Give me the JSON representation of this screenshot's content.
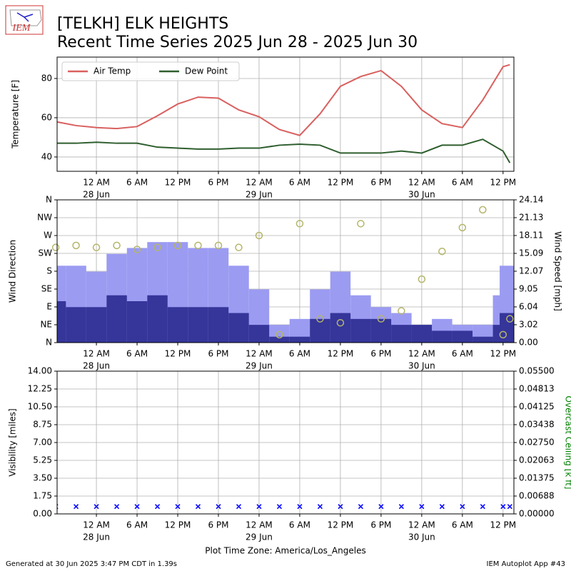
{
  "header": {
    "title": "[TELKH] ELK HEIGHTS",
    "subtitle": "Recent Time Series 2025 Jun 28 - 2025 Jun 30",
    "logo_text": "IEM"
  },
  "footer": {
    "left": "Generated at 30 Jun 2025 3:47 PM CDT in 1.39s",
    "right": "IEM Autoplot App #43"
  },
  "chart_data": [
    {
      "type": "line",
      "ylabel": "Temperature [F]",
      "legend": "upper left",
      "grid": true,
      "xlim": [
        -5.8,
        61.6
      ],
      "ylim": [
        32.7,
        90.9
      ],
      "yticks": [
        40,
        60,
        80
      ],
      "xticks": [
        {
          "value": 0,
          "label": "12 AM",
          "date": "28 Jun"
        },
        {
          "value": 6,
          "label": "6 AM"
        },
        {
          "value": 12,
          "label": "12 PM"
        },
        {
          "value": 18,
          "label": "6 PM"
        },
        {
          "value": 24,
          "label": "12 AM",
          "date": "29 Jun"
        },
        {
          "value": 30,
          "label": "6 AM"
        },
        {
          "value": 36,
          "label": "12 PM"
        },
        {
          "value": 42,
          "label": "6 PM"
        },
        {
          "value": 48,
          "label": "12 AM",
          "date": "30 Jun"
        },
        {
          "value": 54,
          "label": "6 AM"
        },
        {
          "value": 60,
          "label": "12 PM"
        }
      ],
      "x": [
        -6,
        -3,
        0,
        3,
        6,
        9,
        12,
        15,
        18,
        21,
        24,
        27,
        30,
        33,
        36,
        39,
        42,
        45,
        48,
        51,
        54,
        57,
        60,
        61
      ],
      "series": [
        {
          "name": "Air Temp",
          "color": "#d9605f",
          "values": [
            58,
            56,
            55,
            54.5,
            55.5,
            61,
            67,
            70.5,
            70,
            64,
            60.5,
            54,
            51,
            62,
            76,
            81,
            84,
            76,
            64,
            57,
            55,
            69,
            86,
            87
          ]
        },
        {
          "name": "Dew Point",
          "color": "#2e5e2e",
          "values": [
            47,
            47,
            47.5,
            47,
            47,
            45,
            44.5,
            44,
            44,
            44.5,
            44.5,
            46,
            46.5,
            46,
            42,
            42,
            42,
            43,
            42,
            46,
            46,
            49,
            43,
            37
          ]
        }
      ]
    },
    {
      "type": "combo",
      "ylabel": "Wind Direction",
      "y2label": "Wind Speed [mph]",
      "grid": true,
      "xlim": [
        -5.8,
        61.6
      ],
      "ylim": [
        0,
        360
      ],
      "y2lim": [
        0,
        24.14
      ],
      "yticks": [
        {
          "value": 0,
          "label": "N"
        },
        {
          "value": 45,
          "label": "NE"
        },
        {
          "value": 90,
          "label": "E"
        },
        {
          "value": 135,
          "label": "SE"
        },
        {
          "value": 180,
          "label": "S"
        },
        {
          "value": 225,
          "label": "SW"
        },
        {
          "value": 270,
          "label": "W"
        },
        {
          "value": 315,
          "label": "NW"
        },
        {
          "value": 360,
          "label": "N"
        }
      ],
      "y2ticks": [
        {
          "value": 0,
          "label": "0.00"
        },
        3.02,
        6.04,
        9.05,
        12.07,
        15.09,
        18.11,
        21.13,
        24.14
      ],
      "xticks": [
        {
          "value": 0,
          "label": "12 AM",
          "date": "28 Jun"
        },
        {
          "value": 6,
          "label": "6 AM"
        },
        {
          "value": 12,
          "label": "12 PM"
        },
        {
          "value": 18,
          "label": "6 PM"
        },
        {
          "value": 24,
          "label": "12 AM",
          "date": "29 Jun"
        },
        {
          "value": 30,
          "label": "6 AM"
        },
        {
          "value": 36,
          "label": "12 PM"
        },
        {
          "value": 42,
          "label": "6 PM"
        },
        {
          "value": 48,
          "label": "12 AM",
          "date": "30 Jun"
        },
        {
          "value": 54,
          "label": "6 AM"
        },
        {
          "value": 60,
          "label": "12 PM"
        }
      ],
      "x": [
        -6,
        -3,
        0,
        3,
        6,
        9,
        12,
        15,
        18,
        21,
        24,
        27,
        30,
        33,
        36,
        39,
        42,
        45,
        48,
        51,
        54,
        57,
        60,
        61
      ],
      "series": [
        {
          "type": "bar",
          "axis": "y2",
          "color": "#9b9bf2",
          "values": [
            13,
            13,
            12,
            15,
            16,
            17,
            17,
            16,
            16,
            13,
            9,
            3,
            4,
            9,
            12,
            8,
            6,
            5,
            3,
            4,
            3,
            3,
            8,
            13
          ]
        },
        {
          "type": "bar",
          "axis": "y2",
          "color": "#35359a",
          "values": [
            7,
            6,
            6,
            8,
            7,
            8,
            6,
            6,
            6,
            5,
            3,
            1,
            1,
            4,
            5,
            4,
            4,
            3,
            3,
            2,
            2,
            1,
            3,
            5
          ]
        },
        {
          "type": "scatter",
          "axis": "y",
          "color": "#b5b56a",
          "values": [
            240,
            245,
            240,
            245,
            235,
            240,
            245,
            245,
            245,
            240,
            270,
            20,
            300,
            60,
            50,
            300,
            60,
            80,
            160,
            230,
            290,
            335,
            20,
            60
          ]
        }
      ]
    },
    {
      "type": "scatter",
      "ylabel": "Visibility [miles]",
      "y2label": "Overcast Ceiling [k ft]",
      "y2color": "#008000",
      "xlabel": "Plot Time Zone: America/Los_Angeles",
      "grid": true,
      "xlim": [
        -5.8,
        61.6
      ],
      "ylim": [
        0,
        14
      ],
      "y2lim": [
        0,
        0.055
      ],
      "yticks": [
        {
          "value": 0,
          "label": "0.00"
        },
        1.75,
        {
          "value": 3.5,
          "label": "3.50"
        },
        5.25,
        {
          "value": 7,
          "label": "7.00"
        },
        8.75,
        {
          "value": 10.5,
          "label": "10.50"
        },
        12.25,
        {
          "value": 14,
          "label": "14.00"
        }
      ],
      "y2ticks": [
        {
          "value": 0,
          "label": "0.00000"
        },
        0.00688,
        {
          "value": 0.01375,
          "label": "0.01375"
        },
        0.02063,
        {
          "value": 0.0275,
          "label": "0.02750"
        },
        0.03438,
        {
          "value": 0.04125,
          "label": "0.04125"
        },
        0.04813,
        {
          "value": 0.055,
          "label": "0.05500"
        }
      ],
      "xticks": [
        {
          "value": 0,
          "label": "12 AM",
          "date": "28 Jun"
        },
        {
          "value": 6,
          "label": "6 AM"
        },
        {
          "value": 12,
          "label": "12 PM"
        },
        {
          "value": 18,
          "label": "6 PM"
        },
        {
          "value": 24,
          "label": "12 AM",
          "date": "29 Jun"
        },
        {
          "value": 30,
          "label": "6 AM"
        },
        {
          "value": 36,
          "label": "12 PM"
        },
        {
          "value": 42,
          "label": "6 PM"
        },
        {
          "value": 48,
          "label": "12 AM",
          "date": "30 Jun"
        },
        {
          "value": 54,
          "label": "6 AM"
        },
        {
          "value": 60,
          "label": "12 PM"
        }
      ],
      "x": [
        -6,
        -3,
        0,
        3,
        6,
        9,
        12,
        15,
        18,
        21,
        24,
        27,
        30,
        33,
        36,
        39,
        42,
        45,
        48,
        51,
        54,
        57,
        60,
        61
      ],
      "series": [
        {
          "type": "scatter",
          "color": "#0000ff",
          "marker": "x",
          "values": [
            0.72,
            0.72,
            0.72,
            0.72,
            0.72,
            0.72,
            0.72,
            0.72,
            0.72,
            0.72,
            0.72,
            0.72,
            0.72,
            0.72,
            0.72,
            0.72,
            0.72,
            0.72,
            0.72,
            0.72,
            0.72,
            0.72,
            0.72,
            0.72
          ]
        }
      ]
    }
  ]
}
